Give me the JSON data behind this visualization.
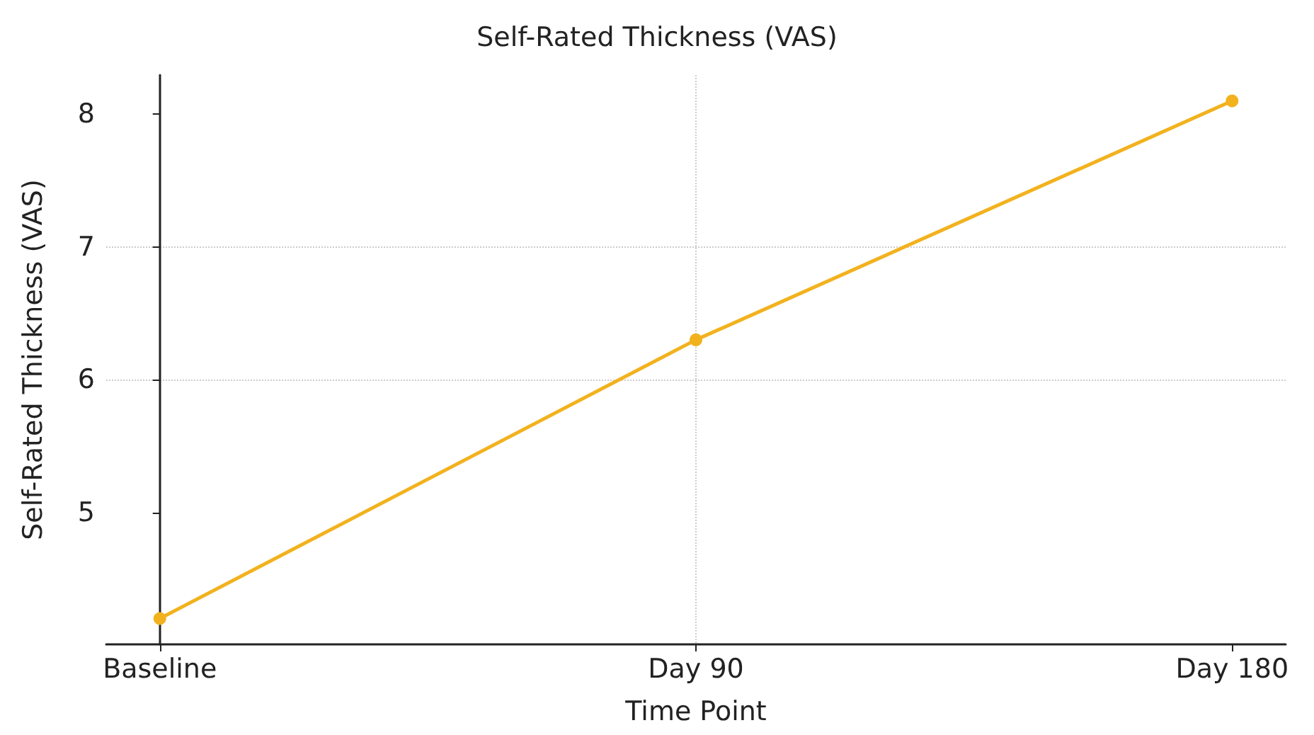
{
  "chart_data": {
    "type": "line",
    "title": "Self-Rated Thickness (VAS)",
    "xlabel": "Time Point",
    "ylabel": "Self-Rated Thickness (VAS)",
    "categories": [
      "Baseline",
      "Day 90",
      "Day 180"
    ],
    "series": [
      {
        "color": "#f2b21e",
        "values": [
          4.2,
          6.3,
          8.1
        ]
      }
    ],
    "ylim": [
      4.005,
      8.295
    ],
    "yticks": [
      5,
      6,
      7,
      8
    ],
    "grid": true,
    "marker": "circle",
    "line_style": "solid"
  }
}
